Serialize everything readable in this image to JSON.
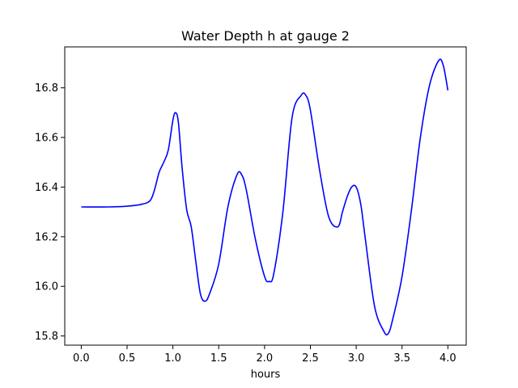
{
  "chart_data": {
    "type": "line",
    "title": "Water Depth h at gauge 2",
    "xlabel": "hours",
    "ylabel": "",
    "xlim": [
      -0.18,
      4.2
    ],
    "ylim": [
      15.763,
      16.965
    ],
    "x_ticks": [
      0.0,
      0.5,
      1.0,
      1.5,
      2.0,
      2.5,
      3.0,
      3.5,
      4.0
    ],
    "x_tick_labels": [
      "0.0",
      "0.5",
      "1.0",
      "1.5",
      "2.0",
      "2.5",
      "3.0",
      "3.5",
      "4.0"
    ],
    "y_ticks": [
      15.8,
      16.0,
      16.2,
      16.4,
      16.6,
      16.8
    ],
    "y_tick_labels": [
      "15.8",
      "16.0",
      "16.2",
      "16.4",
      "16.6",
      "16.8"
    ],
    "grid": false,
    "legend": "none",
    "series": [
      {
        "color": "#0000ff",
        "x": [
          0.0,
          0.3,
          0.5,
          0.65,
          0.75,
          0.8,
          0.85,
          0.9,
          0.95,
          1.0,
          1.03,
          1.06,
          1.1,
          1.15,
          1.2,
          1.25,
          1.3,
          1.35,
          1.4,
          1.5,
          1.6,
          1.7,
          1.75,
          1.8,
          1.9,
          2.0,
          2.05,
          2.1,
          2.2,
          2.3,
          2.4,
          2.45,
          2.5,
          2.6,
          2.7,
          2.8,
          2.85,
          2.9,
          2.95,
          3.0,
          3.05,
          3.1,
          3.2,
          3.3,
          3.35,
          3.4,
          3.5,
          3.6,
          3.7,
          3.8,
          3.9,
          3.95,
          4.0
        ],
        "y": [
          16.32,
          16.32,
          16.323,
          16.33,
          16.345,
          16.39,
          16.46,
          16.5,
          16.55,
          16.67,
          16.7,
          16.66,
          16.48,
          16.31,
          16.24,
          16.1,
          15.97,
          15.94,
          15.97,
          16.09,
          16.32,
          16.45,
          16.45,
          16.39,
          16.19,
          16.04,
          16.02,
          16.05,
          16.3,
          16.68,
          16.77,
          16.77,
          16.71,
          16.47,
          16.28,
          16.24,
          16.3,
          16.36,
          16.4,
          16.4,
          16.33,
          16.19,
          15.92,
          15.82,
          15.81,
          15.87,
          16.04,
          16.3,
          16.6,
          16.81,
          16.91,
          16.89,
          16.79
        ]
      }
    ]
  }
}
